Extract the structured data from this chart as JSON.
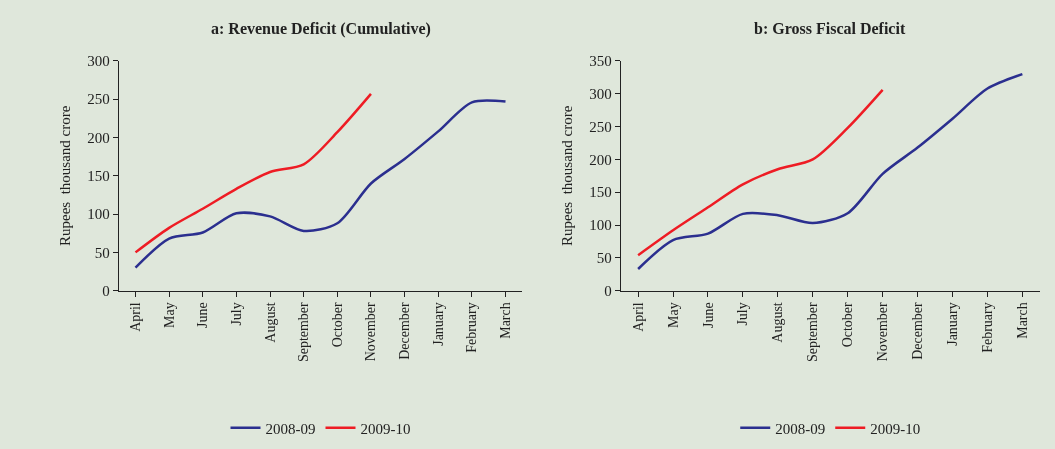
{
  "chart_data": [
    {
      "type": "line",
      "title": "a: Revenue Deficit (Cumulative)",
      "ylabel": "Rupees  thousand crore",
      "categories": [
        "April",
        "May",
        "June",
        "July",
        "August",
        "September",
        "October",
        "November",
        "December",
        "January",
        "February",
        "March"
      ],
      "series": [
        {
          "name": "2008-09",
          "color": "#2b2f8f",
          "values": [
            30,
            68,
            76,
            101,
            97,
            78,
            88,
            140,
            172,
            208,
            246,
            247
          ]
        },
        {
          "name": "2009-10",
          "color": "#ee1c24",
          "values": [
            50,
            82,
            107,
            133,
            155,
            165,
            207,
            257,
            null,
            null,
            null,
            null
          ]
        }
      ],
      "ylim": [
        0,
        300
      ],
      "yticks": [
        0,
        50,
        100,
        150,
        200,
        250,
        300
      ],
      "grid": false,
      "legend": "bottom",
      "marker": "none",
      "line_style": "solid"
    },
    {
      "type": "line",
      "title": "b: Gross Fiscal Deficit",
      "ylabel": "Rupees  thousand crore",
      "categories": [
        "April",
        "May",
        "June",
        "July",
        "August",
        "September",
        "October",
        "November",
        "December",
        "January",
        "February",
        "March"
      ],
      "series": [
        {
          "name": "2008-09",
          "color": "#2b2f8f",
          "values": [
            33,
            77,
            87,
            117,
            115,
            103,
            118,
            178,
            218,
            262,
            308,
            330
          ]
        },
        {
          "name": "2009-10",
          "color": "#ee1c24",
          "values": [
            54,
            92,
            127,
            162,
            185,
            200,
            248,
            306,
            null,
            null,
            null,
            null
          ]
        }
      ],
      "ylim": [
        0,
        350
      ],
      "yticks": [
        0,
        50,
        100,
        150,
        200,
        250,
        300,
        350
      ],
      "grid": false,
      "legend": "bottom",
      "marker": "none",
      "line_style": "solid"
    }
  ]
}
